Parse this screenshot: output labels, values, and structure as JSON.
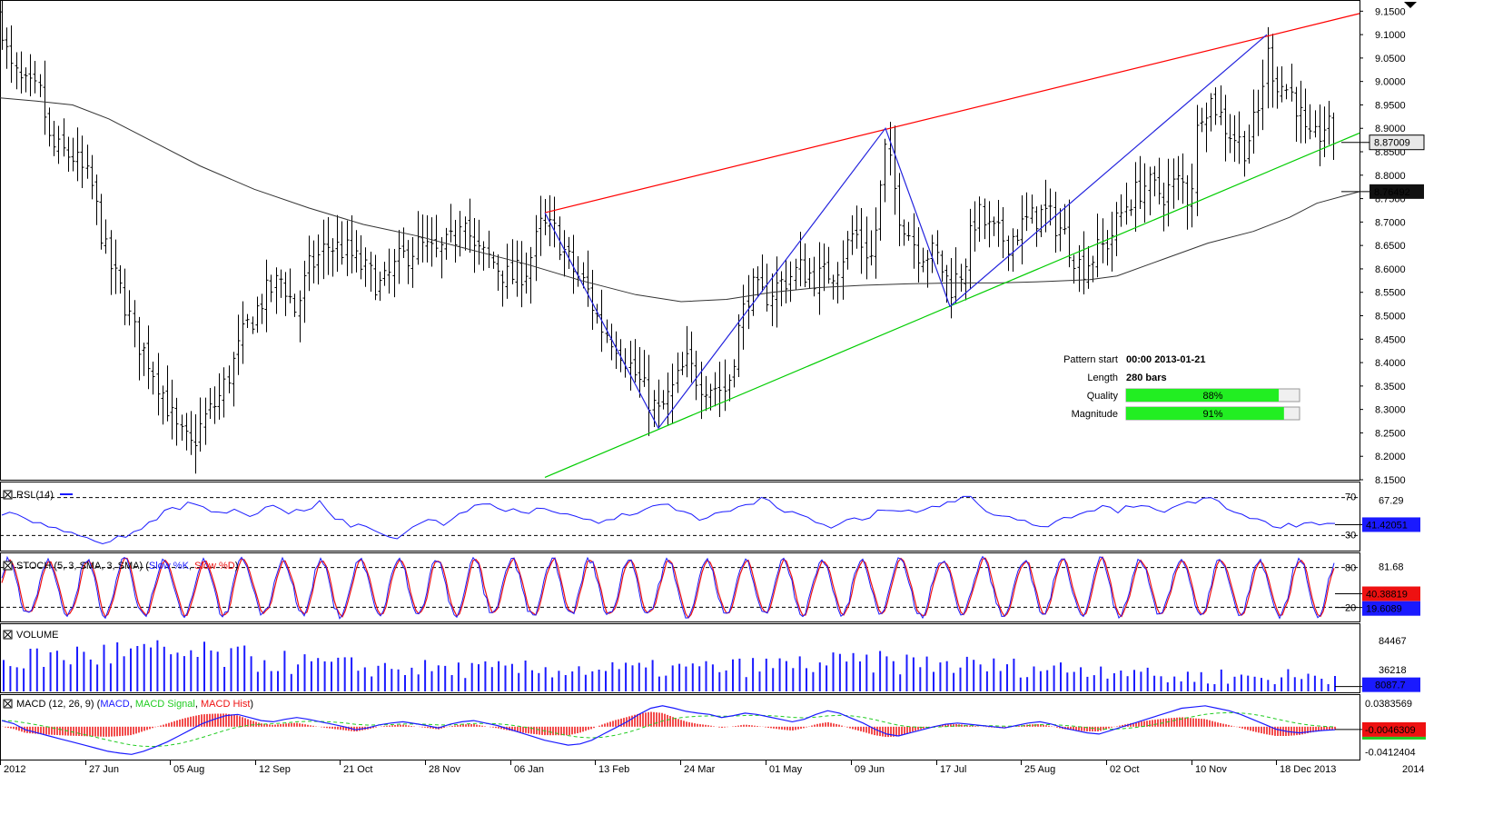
{
  "chart_data": [
    {
      "type": "ohlc",
      "panel": "price",
      "ylim": [
        8.15,
        9.17
      ],
      "yticks": [
        "9.1500",
        "9.1000",
        "9.0500",
        "9.0000",
        "8.9500",
        "8.9000",
        "8.8500",
        "8.8000",
        "8.7500",
        "8.7000",
        "8.6500",
        "8.6000",
        "8.5500",
        "8.5000",
        "8.4500",
        "8.4000",
        "8.3500",
        "8.3000",
        "8.2500",
        "8.2000",
        "8.1500"
      ],
      "xticks": [
        "2012",
        "27 Jun",
        "05 Aug",
        "12 Sep",
        "21 Oct",
        "28 Nov",
        "06 Jan",
        "13 Feb",
        "24 Mar",
        "01 May",
        "09 Jun",
        "17 Jul",
        "25 Aug",
        "02 Oct",
        "10 Nov",
        "18 Dec 2013",
        "2014"
      ],
      "close_path": [
        [
          0,
          9.14
        ],
        [
          10,
          9.03
        ],
        [
          25,
          8.99
        ],
        [
          45,
          8.97
        ],
        [
          55,
          8.86
        ],
        [
          80,
          8.84
        ],
        [
          100,
          8.78
        ],
        [
          118,
          8.62
        ],
        [
          135,
          8.54
        ],
        [
          150,
          8.45
        ],
        [
          165,
          8.4
        ],
        [
          180,
          8.33
        ],
        [
          195,
          8.25
        ],
        [
          210,
          8.22
        ],
        [
          225,
          8.28
        ],
        [
          240,
          8.32
        ],
        [
          255,
          8.39
        ],
        [
          270,
          8.47
        ],
        [
          290,
          8.54
        ],
        [
          310,
          8.58
        ],
        [
          325,
          8.51
        ],
        [
          340,
          8.6
        ],
        [
          360,
          8.65
        ],
        [
          380,
          8.64
        ],
        [
          400,
          8.6
        ],
        [
          420,
          8.56
        ],
        [
          440,
          8.62
        ],
        [
          460,
          8.65
        ],
        [
          480,
          8.63
        ],
        [
          500,
          8.66
        ],
        [
          510,
          8.74
        ],
        [
          520,
          8.64
        ],
        [
          540,
          8.62
        ],
        [
          560,
          8.58
        ],
        [
          580,
          8.6
        ],
        [
          595,
          8.69
        ],
        [
          610,
          8.68
        ],
        [
          630,
          8.6
        ],
        [
          645,
          8.56
        ],
        [
          660,
          8.48
        ],
        [
          680,
          8.44
        ],
        [
          700,
          8.37
        ],
        [
          715,
          8.32
        ],
        [
          725,
          8.29
        ],
        [
          740,
          8.34
        ],
        [
          755,
          8.4
        ],
        [
          770,
          8.36
        ],
        [
          785,
          8.35
        ],
        [
          800,
          8.34
        ],
        [
          812,
          8.46
        ],
        [
          825,
          8.56
        ],
        [
          840,
          8.54
        ],
        [
          860,
          8.57
        ],
        [
          880,
          8.6
        ],
        [
          900,
          8.58
        ],
        [
          920,
          8.6
        ],
        [
          940,
          8.68
        ],
        [
          960,
          8.62
        ],
        [
          975,
          8.86
        ],
        [
          990,
          8.72
        ],
        [
          1010,
          8.64
        ],
        [
          1030,
          8.63
        ],
        [
          1046,
          8.56
        ],
        [
          1060,
          8.6
        ],
        [
          1075,
          8.72
        ],
        [
          1090,
          8.68
        ],
        [
          1110,
          8.66
        ],
        [
          1130,
          8.7
        ],
        [
          1150,
          8.72
        ],
        [
          1170,
          8.68
        ],
        [
          1190,
          8.6
        ],
        [
          1205,
          8.63
        ],
        [
          1220,
          8.66
        ],
        [
          1240,
          8.74
        ],
        [
          1260,
          8.78
        ],
        [
          1280,
          8.76
        ],
        [
          1300,
          8.79
        ],
        [
          1310,
          8.74
        ],
        [
          1320,
          8.94
        ],
        [
          1335,
          8.96
        ],
        [
          1350,
          8.9
        ],
        [
          1370,
          8.86
        ],
        [
          1385,
          8.93
        ],
        [
          1395,
          9.06
        ],
        [
          1405,
          9.0
        ],
        [
          1420,
          8.98
        ],
        [
          1430,
          8.94
        ],
        [
          1440,
          8.86
        ],
        [
          1450,
          8.88
        ],
        [
          1460,
          8.91
        ],
        [
          1470,
          8.87
        ]
      ],
      "moving_average": [
        [
          0,
          8.965
        ],
        [
          40,
          8.958
        ],
        [
          80,
          8.95
        ],
        [
          120,
          8.92
        ],
        [
          170,
          8.87
        ],
        [
          220,
          8.82
        ],
        [
          280,
          8.77
        ],
        [
          340,
          8.73
        ],
        [
          400,
          8.695
        ],
        [
          460,
          8.67
        ],
        [
          520,
          8.64
        ],
        [
          580,
          8.61
        ],
        [
          640,
          8.575
        ],
        [
          700,
          8.545
        ],
        [
          750,
          8.53
        ],
        [
          800,
          8.535
        ],
        [
          850,
          8.55
        ],
        [
          900,
          8.56
        ],
        [
          950,
          8.565
        ],
        [
          1000,
          8.568
        ],
        [
          1050,
          8.57
        ],
        [
          1100,
          8.57
        ],
        [
          1150,
          8.573
        ],
        [
          1200,
          8.577
        ],
        [
          1230,
          8.585
        ],
        [
          1280,
          8.62
        ],
        [
          1330,
          8.655
        ],
        [
          1380,
          8.68
        ],
        [
          1420,
          8.71
        ],
        [
          1450,
          8.74
        ],
        [
          1497,
          8.765
        ]
      ],
      "trendlines": [
        {
          "color": "#ff0000",
          "from": [
            600,
            8.72
          ],
          "to": [
            1497,
            9.145
          ]
        },
        {
          "color": "#00cc00",
          "from": [
            600,
            8.155
          ],
          "to": [
            1497,
            8.89
          ]
        }
      ],
      "zigzag": [
        [
          600,
          8.72
        ],
        [
          725,
          8.26
        ],
        [
          975,
          8.9
        ],
        [
          1046,
          8.52
        ],
        [
          1395,
          9.1
        ]
      ],
      "price_labels": [
        "8.87009",
        "8.76492"
      ],
      "price_label_values": [
        8.87,
        8.765
      ],
      "pattern_info": {
        "labels": [
          "Pattern start",
          "Length",
          "Quality",
          "Magnitude"
        ],
        "values": [
          "00:00 2013-01-21",
          "280 bars"
        ],
        "quality_pct": 88,
        "quality_text": "88%",
        "magnitude_pct": 91,
        "magnitude_text": "91%"
      }
    },
    {
      "type": "line",
      "panel": "rsi",
      "title": "RSI (14)",
      "levels": [
        70,
        30
      ],
      "level_labels": [
        "70",
        "30"
      ],
      "ylim": [
        15,
        85
      ],
      "current_labels": [
        "67.29",
        "41.42051"
      ],
      "current_value": 41.42,
      "values": [
        52,
        55,
        51,
        48,
        42,
        45,
        40,
        37,
        35,
        33,
        30,
        27,
        24,
        22,
        25,
        30,
        28,
        33,
        38,
        43,
        48,
        55,
        60,
        57,
        65,
        63,
        60,
        57,
        55,
        52,
        58,
        53,
        50,
        55,
        60,
        62,
        56,
        53,
        58,
        57,
        60,
        67,
        55,
        48,
        45,
        40,
        43,
        38,
        35,
        30,
        27,
        25,
        33,
        40,
        43,
        48,
        45,
        40,
        47,
        52,
        55,
        60,
        65,
        62,
        58,
        55,
        59,
        55,
        52,
        57,
        58,
        55,
        52,
        54,
        50,
        48,
        45,
        42,
        45,
        48,
        52,
        50,
        55,
        57,
        60,
        62,
        65,
        58,
        55,
        52,
        48,
        50,
        52,
        55,
        57,
        60,
        62,
        65,
        70,
        68,
        60,
        55,
        55,
        52,
        48,
        45,
        40,
        38,
        42,
        45,
        48,
        45,
        50,
        55,
        58,
        55,
        56,
        58,
        54,
        57,
        60,
        62,
        64,
        66,
        70,
        70,
        62,
        55,
        50,
        52,
        50,
        45,
        45,
        42,
        40,
        38,
        45,
        50,
        48,
        52,
        55,
        57,
        60,
        58,
        55,
        60,
        58,
        60,
        62,
        58,
        56,
        60,
        62,
        64,
        66,
        68,
        70,
        68,
        60,
        55,
        52,
        50,
        48,
        45,
        40,
        38,
        42,
        40,
        45,
        42,
        40,
        42,
        41
      ]
    },
    {
      "type": "line",
      "panel": "stoch",
      "title": "STOCH (5, 3, SMA, 3, SMA)",
      "legend": [
        "Slow %K",
        "Slow %D"
      ],
      "levels": [
        80,
        20
      ],
      "level_labels": [
        "80",
        "20"
      ],
      "ylim": [
        0,
        100
      ],
      "current_labels": [
        "81.68",
        "40.38819",
        "19.6089"
      ],
      "k_current": 40.39,
      "d_current": 19.61,
      "cycles": 34
    },
    {
      "type": "bar",
      "panel": "volume",
      "title": "VOLUME",
      "ylim": [
        0,
        110000
      ],
      "yticks": [
        "84467",
        "36218"
      ],
      "ytick_values": [
        84467,
        36218
      ],
      "current_label": "8087.7",
      "current_value": 8087.7,
      "bars": 200
    },
    {
      "type": "line",
      "panel": "macd",
      "title": "MACD (12, 26, 9)",
      "legend": [
        "MACD",
        "MACD Signal",
        "MACD Hist"
      ],
      "ylim": [
        -0.052,
        0.05
      ],
      "yticks": [
        "0.0383569",
        "-0.0412404"
      ],
      "ytick_values": [
        0.0383569,
        -0.0412404
      ],
      "current_labels": [
        "-0.0046309"
      ],
      "current_value": -0.0046,
      "values": [
        0.01,
        0.005,
        -0.005,
        -0.01,
        -0.015,
        -0.02,
        -0.025,
        -0.03,
        -0.035,
        -0.04,
        -0.043,
        -0.045,
        -0.04,
        -0.033,
        -0.025,
        -0.015,
        -0.005,
        0.005,
        0.012,
        0.018,
        0.02,
        0.015,
        0.01,
        0.008,
        0.012,
        0.015,
        0.012,
        0.008,
        0.004,
        0.0,
        -0.005,
        -0.002,
        0.003,
        0.006,
        0.008,
        0.005,
        0.002,
        -0.002,
        0.004,
        0.008,
        0.01,
        0.006,
        0.002,
        -0.004,
        -0.01,
        -0.016,
        -0.022,
        -0.026,
        -0.03,
        -0.028,
        -0.022,
        -0.012,
        -0.002,
        0.008,
        0.02,
        0.03,
        0.034,
        0.03,
        0.025,
        0.022,
        0.02,
        0.015,
        0.018,
        0.022,
        0.02,
        0.016,
        0.012,
        0.008,
        0.012,
        0.02,
        0.026,
        0.022,
        0.014,
        0.006,
        -0.004,
        -0.012,
        -0.015,
        -0.01,
        -0.005,
        0.0,
        0.004,
        0.006,
        0.004,
        0.002,
        0.0,
        -0.002,
        0.002,
        0.006,
        0.008,
        0.004,
        -0.002,
        -0.006,
        -0.01,
        -0.012,
        -0.006,
        0.0,
        0.006,
        0.012,
        0.018,
        0.024,
        0.03,
        0.032,
        0.034,
        0.03,
        0.026,
        0.02,
        0.012,
        0.004,
        -0.004,
        -0.008,
        -0.01,
        -0.008,
        -0.006,
        -0.005
      ]
    }
  ]
}
